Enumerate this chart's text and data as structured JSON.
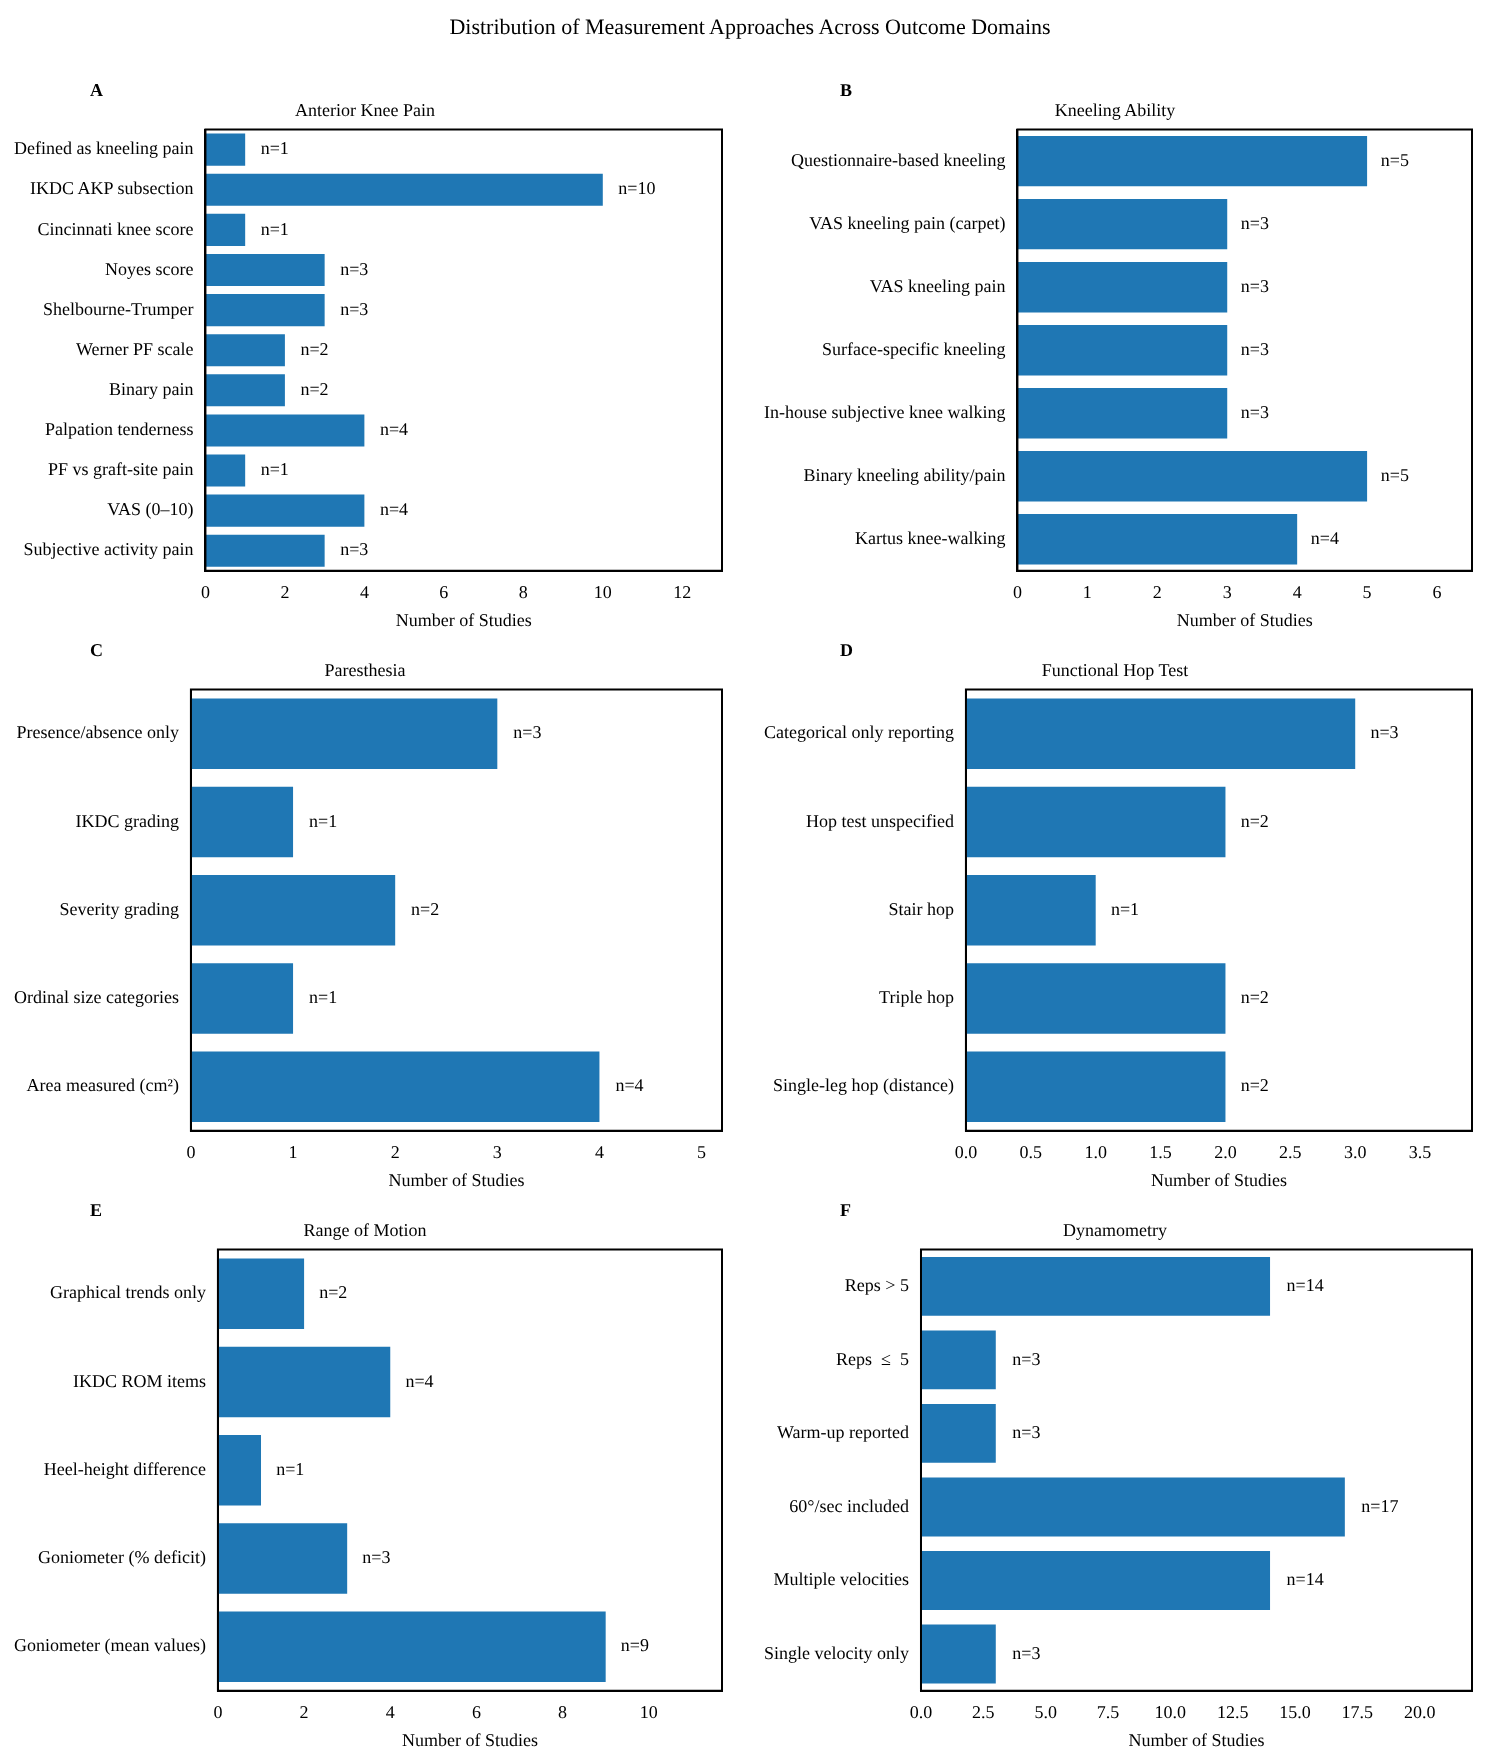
{
  "chart_data": [
    {
      "type": "bar",
      "orientation": "horizontal",
      "title": "Anterior Knee Pain",
      "xlabel": "Number of Studies",
      "annotations": [
        "Distribution of Measurement Approaches Across Outcome Domains",
        "A"
      ],
      "categories": [
        "Defined as kneeling pain",
        "IKDC AKP subsection",
        "Cincinnati knee score",
        "Noyes score",
        "Shelbourne-Trumper",
        "Werner PF scale",
        "Binary pain",
        "Palpation tenderness",
        "PF vs graft-site pain",
        "VAS (0–10)",
        "Subjective activity pain"
      ],
      "values": [
        1,
        10,
        1,
        3,
        3,
        2,
        2,
        4,
        1,
        4,
        3
      ],
      "value_labels": [
        "n=1",
        "n=10",
        "n=1",
        "n=3",
        "n=3",
        "n=2",
        "n=2",
        "n=4",
        "n=1",
        "n=4",
        "n=3"
      ],
      "color": "#1f77b4",
      "xlim": [
        0,
        13
      ],
      "xticks": [
        0,
        2,
        4,
        6,
        8,
        10,
        12
      ],
      "grid": false,
      "legend": false
    },
    {
      "type": "bar",
      "orientation": "horizontal",
      "title": "Kneeling Ability",
      "xlabel": "Number of Studies",
      "annotations": [
        "B"
      ],
      "categories": [
        "Questionnaire-based kneeling",
        "VAS kneeling pain (carpet)",
        "VAS kneeling pain",
        "Surface-specific kneeling",
        "In-house subjective knee walking",
        "Binary kneeling ability/pain",
        "Kartus knee-walking"
      ],
      "values": [
        5,
        3,
        3,
        3,
        3,
        5,
        4
      ],
      "value_labels": [
        "n=5",
        "n=3",
        "n=3",
        "n=3",
        "n=3",
        "n=5",
        "n=4"
      ],
      "color": "#1f77b4",
      "xlim": [
        0,
        6.5
      ],
      "xticks": [
        0,
        1,
        2,
        3,
        4,
        5,
        6
      ],
      "grid": false,
      "legend": false
    },
    {
      "type": "bar",
      "orientation": "horizontal",
      "title": "Paresthesia",
      "xlabel": "Number of Studies",
      "annotations": [
        "C"
      ],
      "categories": [
        "Presence/absence only",
        "IKDC grading",
        "Severity grading",
        "Ordinal size categories",
        "Area measured (cm²)"
      ],
      "values": [
        3,
        1,
        2,
        1,
        4
      ],
      "value_labels": [
        "n=3",
        "n=1",
        "n=2",
        "n=1",
        "n=4"
      ],
      "color": "#1f77b4",
      "xlim": [
        0,
        5.2
      ],
      "xticks": [
        0,
        1,
        2,
        3,
        4,
        5
      ],
      "grid": false,
      "legend": false
    },
    {
      "type": "bar",
      "orientation": "horizontal",
      "title": "Functional Hop Test",
      "xlabel": "Number of Studies",
      "annotations": [
        "D"
      ],
      "categories": [
        "Categorical only reporting",
        "Hop test unspecified",
        "Stair hop",
        "Triple hop",
        "Single-leg hop (distance)"
      ],
      "values": [
        3,
        2,
        1,
        2,
        2
      ],
      "value_labels": [
        "n=3",
        "n=2",
        "n=1",
        "n=2",
        "n=2"
      ],
      "color": "#1f77b4",
      "xlim": [
        0,
        3.9
      ],
      "xticks": [
        {
          "value": 0,
          "label": "0.0"
        },
        {
          "value": 0.5,
          "label": "0.5"
        },
        {
          "value": 1,
          "label": "1.0"
        },
        {
          "value": 1.5,
          "label": "1.5"
        },
        {
          "value": 2,
          "label": "2.0"
        },
        {
          "value": 2.5,
          "label": "2.5"
        },
        {
          "value": 3,
          "label": "3.0"
        },
        {
          "value": 3.5,
          "label": "3.5"
        }
      ],
      "grid": false,
      "legend": false
    },
    {
      "type": "bar",
      "orientation": "horizontal",
      "title": "Range of Motion",
      "xlabel": "Number of Studies",
      "annotations": [
        "E"
      ],
      "categories": [
        "Graphical trends only",
        "IKDC ROM items",
        "Heel-height difference",
        "Goniometer (% deficit)",
        "Goniometer (mean values)"
      ],
      "values": [
        2,
        4,
        1,
        3,
        9
      ],
      "value_labels": [
        "n=2",
        "n=4",
        "n=1",
        "n=3",
        "n=9"
      ],
      "color": "#1f77b4",
      "xlim": [
        0,
        11.7
      ],
      "xticks": [
        0,
        2,
        4,
        6,
        8,
        10
      ],
      "grid": false,
      "legend": false
    },
    {
      "type": "bar",
      "orientation": "horizontal",
      "title": "Dynamometry",
      "xlabel": "Number of Studies",
      "annotations": [
        "F"
      ],
      "categories": [
        "Reps > 5",
        "Reps  ≤  5",
        "Warm-up reported",
        "60°/sec included",
        "Multiple velocities",
        "Single velocity only"
      ],
      "values": [
        14,
        3,
        3,
        17,
        14,
        3
      ],
      "value_labels": [
        "n=14",
        "n=3",
        "n=3",
        "n=17",
        "n=14",
        "n=3"
      ],
      "color": "#1f77b4",
      "xlim": [
        0,
        22.1
      ],
      "xticks": [
        {
          "value": 0,
          "label": "0.0"
        },
        {
          "value": 2.5,
          "label": "2.5"
        },
        {
          "value": 5,
          "label": "5.0"
        },
        {
          "value": 7.5,
          "label": "7.5"
        },
        {
          "value": 10,
          "label": "10.0"
        },
        {
          "value": 12.5,
          "label": "12.5"
        },
        {
          "value": 15,
          "label": "15.0"
        },
        {
          "value": 17.5,
          "label": "17.5"
        },
        {
          "value": 20,
          "label": "20.0"
        }
      ],
      "grid": false,
      "legend": false
    }
  ]
}
